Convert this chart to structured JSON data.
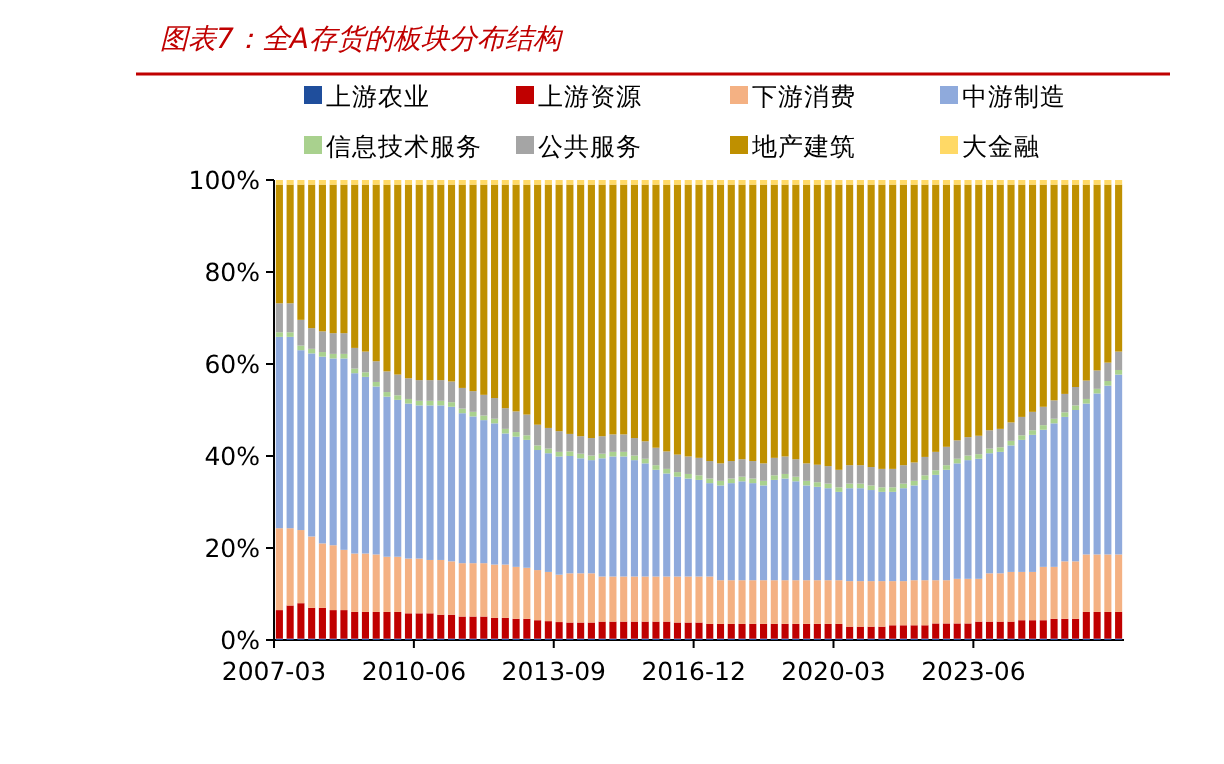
{
  "chart_data": {
    "type": "bar",
    "stacked": true,
    "title": "图表7：全A存货的板块分布结构",
    "legend": "top",
    "categories": [
      "2007-03",
      null,
      null,
      null,
      null,
      null,
      null,
      null,
      null,
      null,
      null,
      null,
      null,
      "2010-06",
      null,
      null,
      null,
      null,
      null,
      null,
      null,
      null,
      null,
      null,
      null,
      null,
      "2013-09",
      null,
      null,
      null,
      null,
      null,
      null,
      null,
      null,
      null,
      null,
      null,
      null,
      "2016-12",
      null,
      null,
      null,
      null,
      null,
      null,
      null,
      null,
      null,
      null,
      null,
      null,
      "2020-03",
      null,
      null,
      null,
      null,
      null,
      null,
      null,
      null,
      null,
      null,
      null,
      null,
      "2023-06",
      null,
      null,
      null,
      null,
      null,
      null,
      null,
      null,
      null,
      null,
      null,
      null,
      null
    ],
    "ylim": [
      0,
      100
    ],
    "yticks": [
      {
        "value": 0,
        "label": "0%"
      },
      {
        "value": 20,
        "label": "20%"
      },
      {
        "value": 40,
        "label": "40%"
      },
      {
        "value": 60,
        "label": "60%"
      },
      {
        "value": 80,
        "label": "80%"
      },
      {
        "value": 100,
        "label": "100%"
      }
    ],
    "series": [
      {
        "name": "上游农业",
        "color": "#1f4e9c",
        "values": [
          0.3,
          0.3,
          0.3,
          0.3,
          0.3,
          0.3,
          0.3,
          0.3,
          0.3,
          0.3,
          0.3,
          0.3,
          0.3,
          0.3,
          0.3,
          0.3,
          0.3,
          0.3,
          0.3,
          0.3,
          0.3,
          0.3,
          0.3,
          0.3,
          0.3,
          0.3,
          0.3,
          0.3,
          0.3,
          0.3,
          0.3,
          0.3,
          0.3,
          0.3,
          0.3,
          0.3,
          0.3,
          0.3,
          0.3,
          0.3,
          0.3,
          0.3,
          0.3,
          0.3,
          0.3,
          0.3,
          0.3,
          0.3,
          0.3,
          0.3,
          0.3,
          0.3,
          0.3,
          0.3,
          0.3,
          0.3,
          0.3,
          0.3,
          0.3,
          0.3,
          0.3,
          0.3,
          0.3,
          0.3,
          0.3,
          0.3,
          0.3,
          0.3,
          0.3,
          0.3,
          0.3,
          0.3,
          0.3,
          0.3,
          0.3,
          0.3,
          0.3,
          0.3,
          0.3
        ]
      },
      {
        "name": "上游资源",
        "color": "#c00000",
        "values": [
          6.2,
          7.2,
          7.7,
          6.7,
          6.7,
          6.2,
          6.2,
          5.8,
          5.8,
          5.8,
          5.8,
          5.8,
          5.5,
          5.5,
          5.5,
          5.2,
          5.2,
          4.8,
          4.8,
          4.8,
          4.5,
          4.5,
          4.3,
          4.3,
          4.0,
          3.8,
          3.6,
          3.5,
          3.5,
          3.5,
          3.7,
          3.7,
          3.7,
          3.7,
          3.7,
          3.7,
          3.7,
          3.5,
          3.5,
          3.5,
          3.2,
          3.2,
          3.2,
          3.2,
          3.2,
          3.2,
          3.2,
          3.2,
          3.2,
          3.2,
          3.2,
          3.2,
          3.2,
          2.6,
          2.6,
          2.6,
          2.6,
          2.9,
          2.9,
          2.9,
          2.9,
          3.3,
          3.3,
          3.3,
          3.3,
          3.7,
          3.7,
          3.7,
          3.7,
          4.0,
          4.0,
          4.0,
          4.3,
          4.3,
          4.3,
          5.8,
          5.8,
          5.8,
          5.8
        ]
      },
      {
        "name": "下游消费",
        "color": "#f4b183",
        "values": [
          17.8,
          16.8,
          15.9,
          15.5,
          14.0,
          14.1,
          13.1,
          12.7,
          12.7,
          12.5,
          12.0,
          12.0,
          11.9,
          11.9,
          11.6,
          11.9,
          11.6,
          11.6,
          11.6,
          11.6,
          11.6,
          11.6,
          11.3,
          11.1,
          10.9,
          10.7,
          10.3,
          10.7,
          10.7,
          10.7,
          9.8,
          9.8,
          9.8,
          9.8,
          9.8,
          9.8,
          9.8,
          10.0,
          10.0,
          10.0,
          10.3,
          9.5,
          9.5,
          9.5,
          9.5,
          9.5,
          9.5,
          9.5,
          9.5,
          9.5,
          9.5,
          9.5,
          9.5,
          9.9,
          9.9,
          9.9,
          9.9,
          9.6,
          9.6,
          9.8,
          9.8,
          9.4,
          9.4,
          9.7,
          9.7,
          9.3,
          10.5,
          10.5,
          10.8,
          10.5,
          10.5,
          11.6,
          11.3,
          12.5,
          12.5,
          12.5,
          12.5,
          12.5,
          12.5
        ]
      },
      {
        "name": "中游制造",
        "color": "#8faadc",
        "values": [
          41.6,
          41.6,
          39.1,
          39.8,
          40.6,
          40.6,
          41.6,
          39.2,
          38.4,
          36.5,
          34.8,
          34.1,
          33.7,
          33.3,
          33.6,
          33.6,
          33.6,
          32.6,
          31.9,
          31.1,
          30.7,
          28.5,
          28.3,
          27.8,
          26.1,
          25.8,
          25.7,
          25.5,
          25.0,
          24.6,
          25.7,
          26.1,
          26.1,
          25.3,
          24.6,
          23.2,
          22.4,
          21.7,
          21.3,
          21.0,
          20.3,
          20.6,
          21.1,
          21.5,
          21.1,
          20.6,
          21.8,
          22.1,
          21.5,
          20.6,
          20.3,
          20.0,
          19.2,
          20.2,
          20.2,
          19.8,
          19.4,
          19.4,
          20.2,
          20.6,
          21.8,
          22.9,
          24.0,
          25.1,
          25.8,
          26.1,
          26.1,
          26.4,
          27.5,
          28.7,
          29.8,
          29.8,
          31.2,
          31.4,
          32.9,
          32.8,
          35.0,
          36.7,
          39.1
        ]
      },
      {
        "name": "信息技术服务",
        "color": "#a9d18e",
        "values": [
          1,
          1,
          1,
          1,
          1,
          1,
          1,
          1,
          1,
          1,
          1,
          1,
          1,
          1,
          1,
          1,
          1,
          1,
          1,
          1,
          1,
          1,
          1,
          1,
          1,
          1,
          1,
          1,
          1,
          1,
          1,
          1,
          1,
          1,
          1,
          1,
          1,
          1,
          1,
          1,
          1,
          1,
          1,
          1,
          1,
          1,
          1,
          1,
          1,
          1,
          1,
          1,
          1,
          1,
          1,
          1,
          1,
          1,
          1,
          1,
          1,
          1,
          1,
          1,
          1,
          1,
          1,
          1,
          1,
          1,
          1,
          1,
          1,
          1,
          1,
          1,
          1,
          1,
          1
        ]
      },
      {
        "name": "公共服务",
        "color": "#a5a5a5",
        "values": [
          6.3,
          6.3,
          5.6,
          4.5,
          4.5,
          4.5,
          4.5,
          4.5,
          4.5,
          4.5,
          4.5,
          4.5,
          4.5,
          4.5,
          4.5,
          4.5,
          4.5,
          4.5,
          4.5,
          4.5,
          4.5,
          4.5,
          4.5,
          4.5,
          4.5,
          4.5,
          4.5,
          3.8,
          3.8,
          3.8,
          3.8,
          3.8,
          3.8,
          3.8,
          3.8,
          3.8,
          3.8,
          3.8,
          3.8,
          3.8,
          3.8,
          3.8,
          3.8,
          3.8,
          3.8,
          3.8,
          3.8,
          3.8,
          3.8,
          3.8,
          3.8,
          3.8,
          3.8,
          4.0,
          4.0,
          4.0,
          4.0,
          4.0,
          4.0,
          4.0,
          4.0,
          4.0,
          4.0,
          4.0,
          4.0,
          4.0,
          4.0,
          4.0,
          4.0,
          4.0,
          4.0,
          4.0,
          4.0,
          4.0,
          4.0,
          4.0,
          4.0,
          4.0,
          4.0
        ]
      },
      {
        "name": "地产建筑",
        "color": "#bf9000",
        "values": [
          25.8,
          25.8,
          29.4,
          31.2,
          31.9,
          32.3,
          32.3,
          35.5,
          36.3,
          38.4,
          40.6,
          41.3,
          42.1,
          42.5,
          42.5,
          42.5,
          42.8,
          44.2,
          44.9,
          45.7,
          46.4,
          48.6,
          49.3,
          50.0,
          52.2,
          52.9,
          53.6,
          54.2,
          54.7,
          55.1,
          54.7,
          54.3,
          54.3,
          55.1,
          55.8,
          57.2,
          58.0,
          58.7,
          59.1,
          59.4,
          60.1,
          60.6,
          60.1,
          59.7,
          60.1,
          60.6,
          59.4,
          59.1,
          59.7,
          60.6,
          60.9,
          61.2,
          62.0,
          61.0,
          61.0,
          61.4,
          61.8,
          61.8,
          61.0,
          60.4,
          59.2,
          58.1,
          57.0,
          55.6,
          54.9,
          54.6,
          53.4,
          53.1,
          51.7,
          50.5,
          49.4,
          48.3,
          46.9,
          45.5,
          44.0,
          42.6,
          40.4,
          38.7,
          36.3
        ]
      },
      {
        "name": "大金融",
        "color": "#ffd966",
        "values": [
          1,
          1,
          1,
          1,
          1,
          1,
          1,
          1,
          1,
          1,
          1,
          1,
          1,
          1,
          1,
          1,
          1,
          1,
          1,
          1,
          1,
          1,
          1,
          1,
          1,
          1,
          1,
          1,
          1,
          1,
          1,
          1,
          1,
          1,
          1,
          1,
          1,
          1,
          1,
          1,
          1,
          1,
          1,
          1,
          1,
          1,
          1,
          1,
          1,
          1,
          1,
          1,
          1,
          1,
          1,
          1,
          1,
          1,
          1,
          1,
          1,
          1,
          1,
          1,
          1,
          1,
          1,
          1,
          1,
          1,
          1,
          1,
          1,
          1,
          1,
          1,
          1,
          1,
          1
        ]
      }
    ]
  }
}
